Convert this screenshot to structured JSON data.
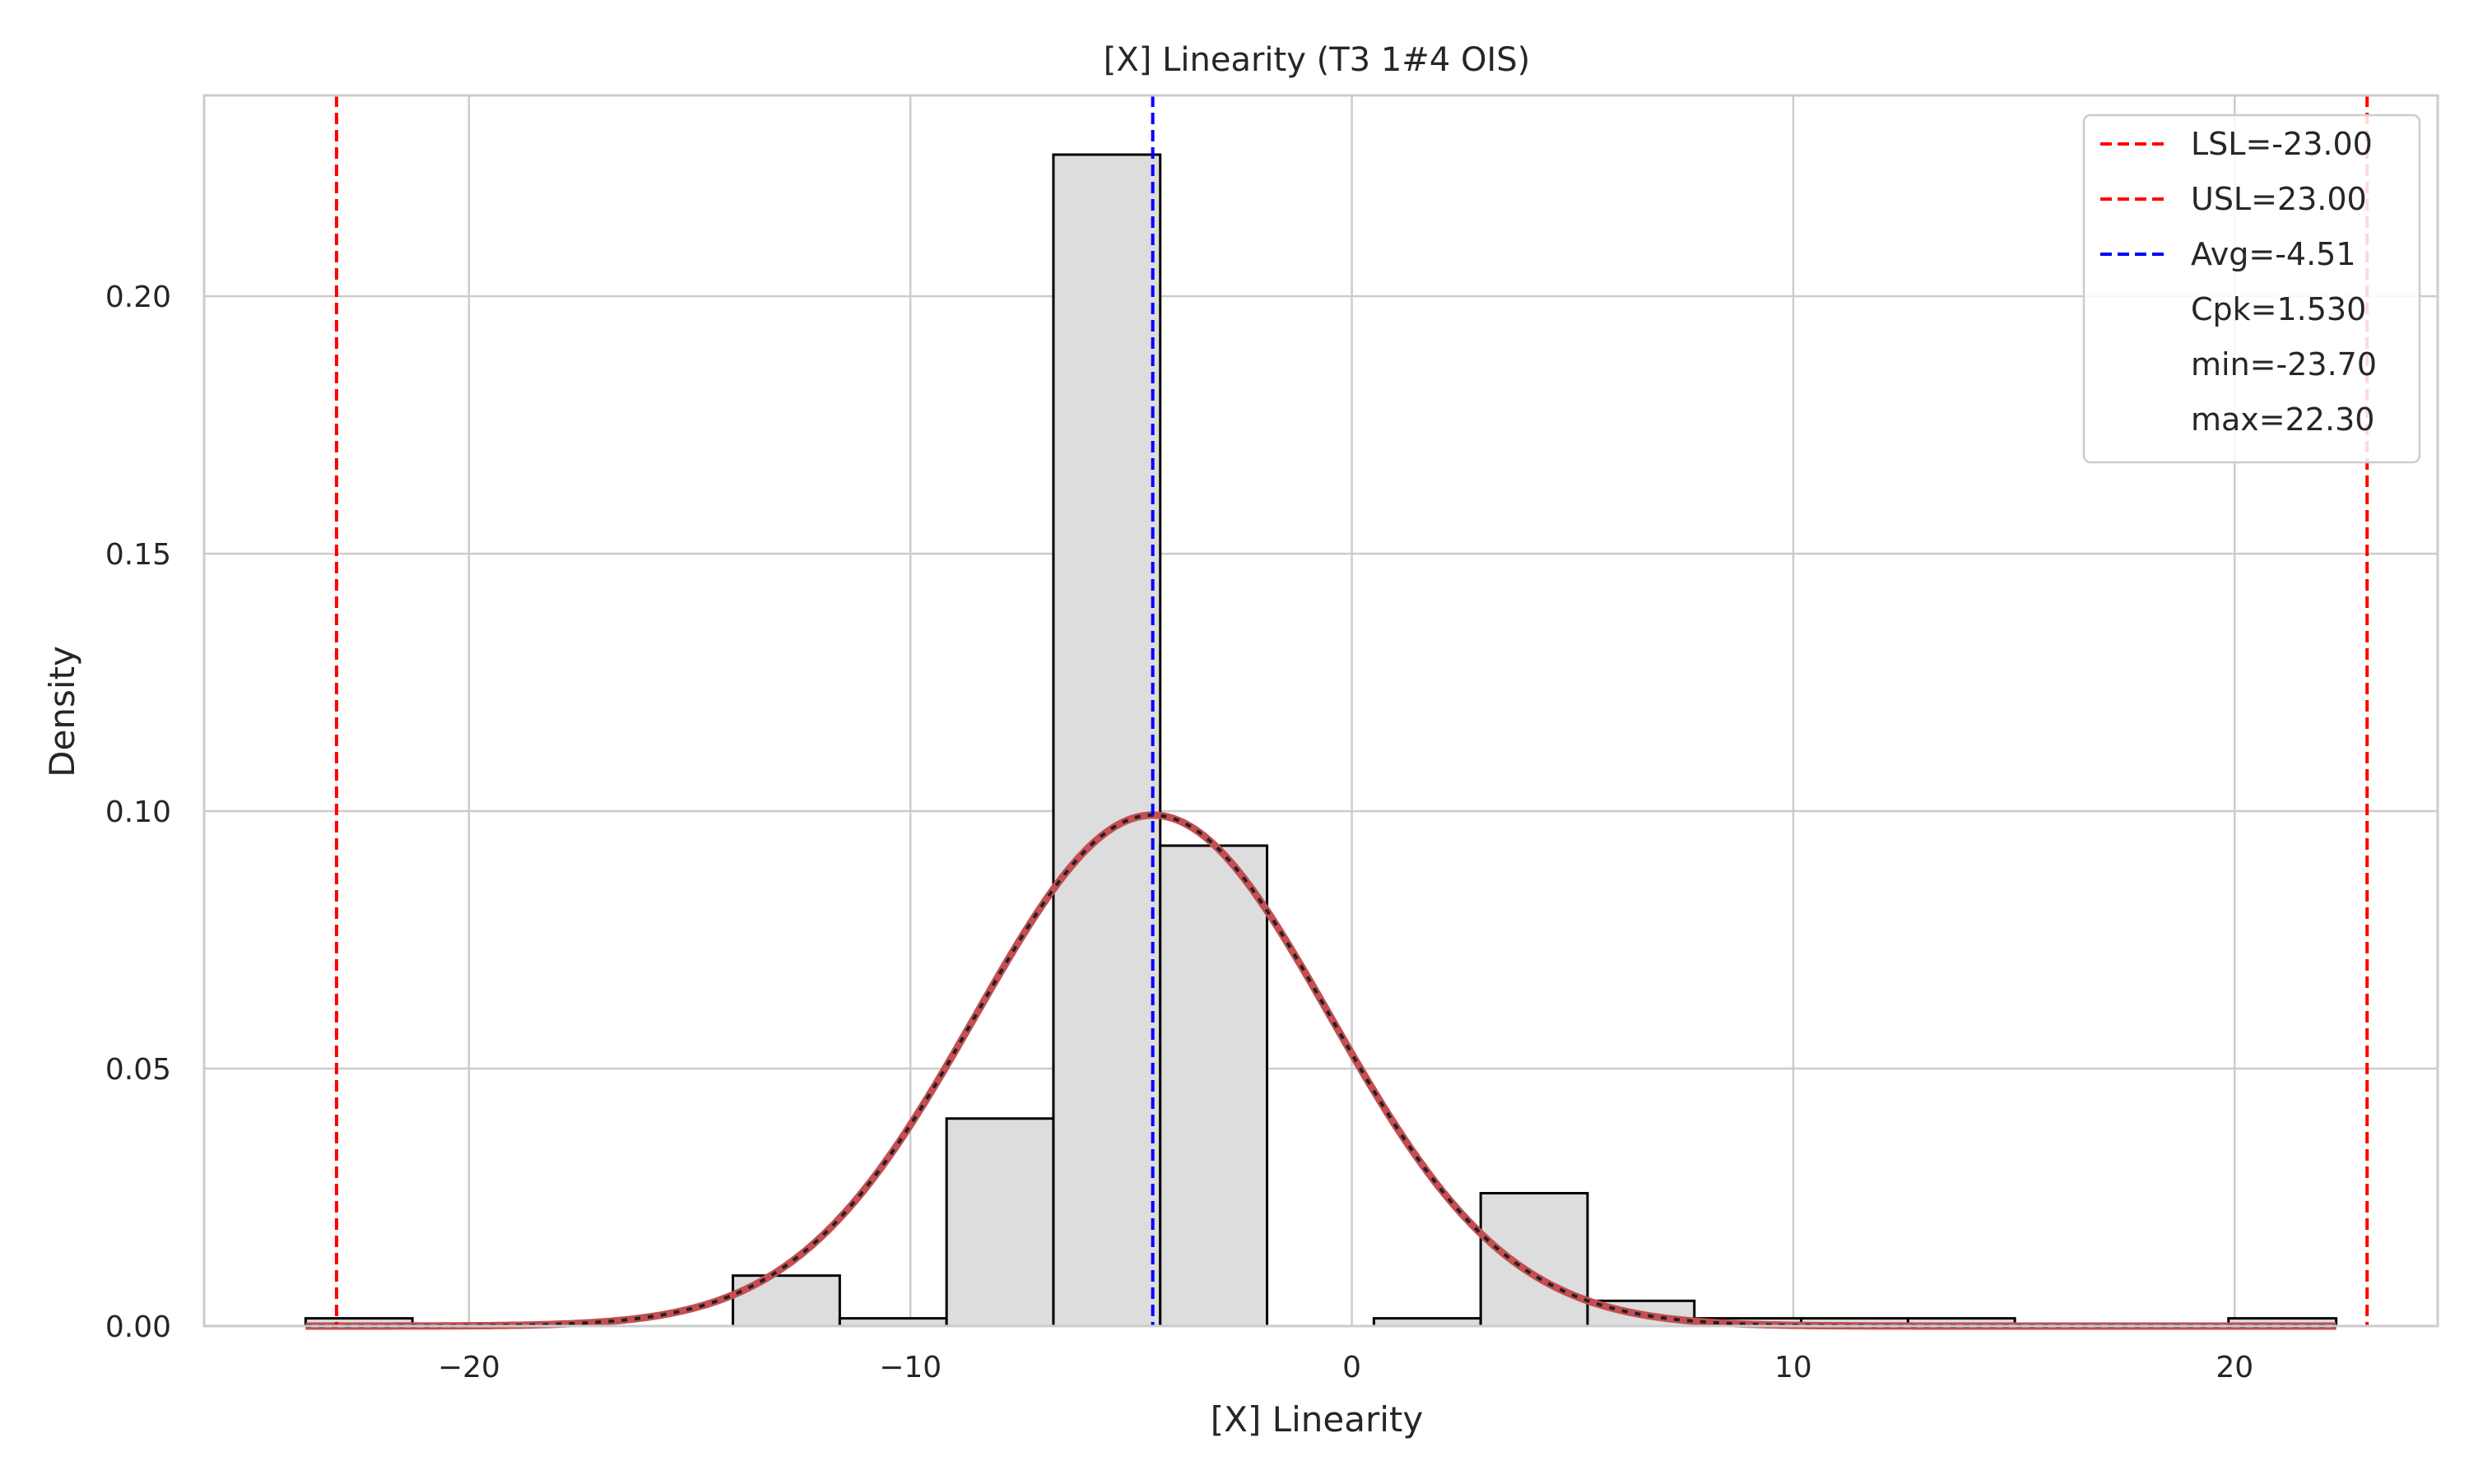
{
  "chart_data": {
    "type": "histogram",
    "title": "[X] Linearity (T3 1#4 OIS)",
    "xlabel": "[X] Linearity",
    "ylabel": "Density",
    "xlim": [
      -26.0,
      24.6
    ],
    "ylim": [
      0,
      0.239
    ],
    "x_ticks": [
      -20,
      -10,
      0,
      10,
      20
    ],
    "x_tick_labels": [
      "−20",
      "−10",
      "0",
      "10",
      "20"
    ],
    "y_ticks": [
      0.0,
      0.05,
      0.1,
      0.15,
      0.2
    ],
    "y_tick_labels": [
      "0.00",
      "0.05",
      "0.10",
      "0.15",
      "0.20"
    ],
    "grid": true,
    "legend_position": "top-right",
    "bin_width": 2.42,
    "bins": [
      {
        "start": -23.7,
        "end": -21.28,
        "density": 0.0015
      },
      {
        "start": -21.28,
        "end": -18.86,
        "density": 0.0
      },
      {
        "start": -18.86,
        "end": -16.44,
        "density": 0.0
      },
      {
        "start": -16.44,
        "end": -14.02,
        "density": 0.0
      },
      {
        "start": -14.02,
        "end": -11.6,
        "density": 0.0098
      },
      {
        "start": -11.6,
        "end": -9.18,
        "density": 0.0015
      },
      {
        "start": -9.18,
        "end": -6.76,
        "density": 0.0403
      },
      {
        "start": -6.76,
        "end": -4.34,
        "density": 0.2275
      },
      {
        "start": -4.34,
        "end": -1.92,
        "density": 0.0933
      },
      {
        "start": -1.92,
        "end": 0.5,
        "density": 0.0
      },
      {
        "start": 0.5,
        "end": 2.92,
        "density": 0.0015
      },
      {
        "start": 2.92,
        "end": 5.34,
        "density": 0.0258
      },
      {
        "start": 5.34,
        "end": 7.76,
        "density": 0.0049
      },
      {
        "start": 7.76,
        "end": 10.18,
        "density": 0.0015
      },
      {
        "start": 10.18,
        "end": 12.6,
        "density": 0.0015
      },
      {
        "start": 12.6,
        "end": 15.02,
        "density": 0.0015
      },
      {
        "start": 15.02,
        "end": 17.44,
        "density": 0.0
      },
      {
        "start": 17.44,
        "end": 19.86,
        "density": 0.0
      },
      {
        "start": 19.86,
        "end": 22.3,
        "density": 0.0015
      }
    ],
    "normal_fit": {
      "mean": -4.51,
      "std": 4.02
    },
    "series": [
      {
        "name": "LSL=-23.00",
        "x": -23.0,
        "color": "#ff0000",
        "style": "dashed"
      },
      {
        "name": "USL=23.00",
        "x": 23.0,
        "color": "#ff0000",
        "style": "dashed"
      },
      {
        "name": "Avg=-4.51",
        "x": -4.51,
        "color": "#0000ff",
        "style": "dashed"
      }
    ],
    "legend_text": [
      "Cpk=1.530",
      "min=-23.70",
      "max=22.30"
    ],
    "colors": {
      "bar_fill": "#dddddd",
      "bar_edge": "#000000",
      "fit_curve": "#c44e52",
      "fit_overlay": "#222222",
      "grid": "#cccccc",
      "spine": "#cccccc"
    }
  }
}
